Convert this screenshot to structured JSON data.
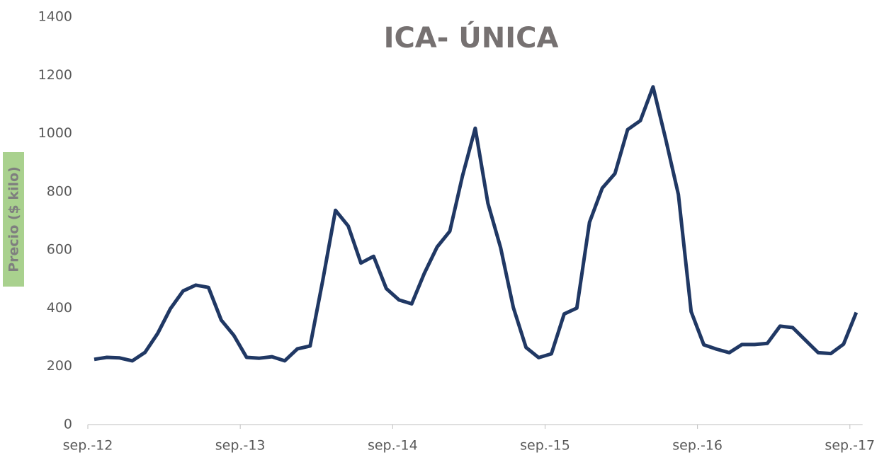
{
  "chart_data": {
    "type": "line",
    "title": "ICA- ÚNICA",
    "y_label": "Precio ($ kilo)",
    "categories": [
      "sep.-12",
      null,
      null,
      null,
      null,
      null,
      null,
      null,
      null,
      null,
      null,
      null,
      "sep.-13",
      null,
      null,
      null,
      null,
      null,
      null,
      null,
      null,
      null,
      null,
      null,
      "sep.-14",
      null,
      null,
      null,
      null,
      null,
      null,
      null,
      null,
      null,
      null,
      null,
      "sep.-15",
      null,
      null,
      null,
      null,
      null,
      null,
      null,
      null,
      null,
      null,
      null,
      "sep.-16",
      null,
      null,
      null,
      null,
      null,
      null,
      null,
      null,
      null,
      null,
      null,
      "sep.-17"
    ],
    "series": [
      {
        "name": "ICA- ÚNICA",
        "color": "#203864",
        "values": [
          224,
          231,
          229,
          219,
          248,
          313,
          398,
          459,
          479,
          471,
          359,
          306,
          231,
          228,
          233,
          219,
          260,
          270,
          496,
          736,
          682,
          555,
          578,
          467,
          428,
          415,
          520,
          610,
          664,
          854,
          1018,
          760,
          608,
          402,
          265,
          230,
          243,
          380,
          400,
          695,
          812,
          862,
          1013,
          1044,
          1160,
          980,
          790,
          388,
          274,
          259,
          247,
          275,
          275,
          279,
          338,
          333,
          290,
          247,
          244,
          276,
          385
        ]
      }
    ],
    "ylim": [
      0,
      1400
    ],
    "yticks": [
      0,
      200,
      400,
      600,
      800,
      1000,
      1200,
      1400
    ],
    "grid": false
  }
}
